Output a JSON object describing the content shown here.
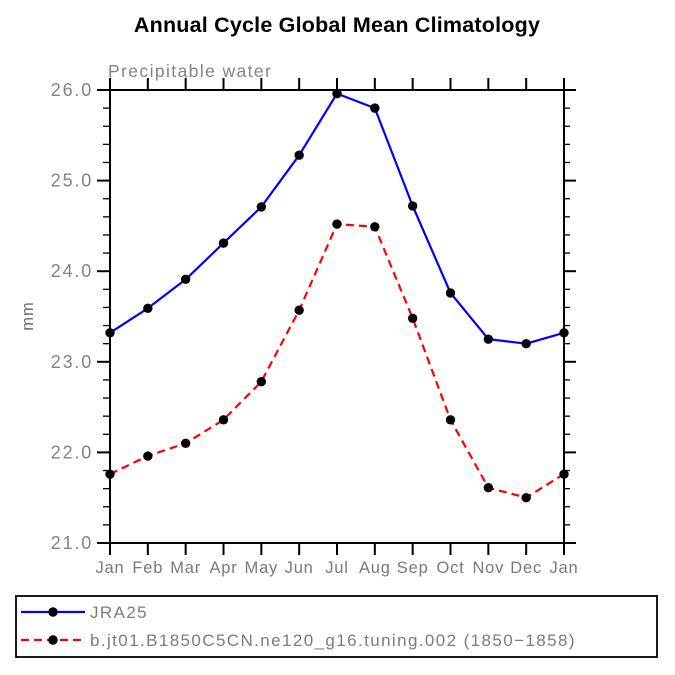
{
  "page": {
    "background": "#ffffff"
  },
  "colors": {
    "axis": "#000000",
    "title_text": "#000000",
    "label_text": "#848484",
    "marker": "#000000",
    "series_blue": "#0000ff",
    "series_red": "#ff0000"
  },
  "chart_data": {
    "type": "line",
    "title": "Annual Cycle Global Mean Climatology",
    "subtitle": "Precipitable water",
    "xlabel": "",
    "ylabel": "mm",
    "categories": [
      "Jan",
      "Feb",
      "Mar",
      "Apr",
      "May",
      "Jun",
      "Jul",
      "Aug",
      "Sep",
      "Oct",
      "Nov",
      "Dec",
      "Jan"
    ],
    "ylim": [
      21.0,
      26.0
    ],
    "ytick_values": [
      21.0,
      22.0,
      23.0,
      24.0,
      25.0,
      26.0
    ],
    "ytick_labels": [
      "21.0",
      "22.0",
      "23.0",
      "24.0",
      "25.0",
      "26.0"
    ],
    "y_minor_tick_step": 0.2,
    "grid": false,
    "legend_position": "bottom-left-box",
    "series": [
      {
        "name": "JRA25",
        "color": "#0000ff",
        "line_style": "solid",
        "marker": "filled-circle",
        "marker_color": "#000000",
        "values": [
          23.32,
          23.59,
          23.91,
          24.31,
          24.71,
          25.28,
          25.96,
          25.8,
          24.72,
          23.76,
          23.25,
          23.2,
          23.32
        ]
      },
      {
        "name": "b.jt01.B1850C5CN.ne120_g16.tuning.002 (1850−1858)",
        "color": "#ff0000",
        "line_style": "dashed",
        "marker": "filled-circle",
        "marker_color": "#000000",
        "values": [
          21.76,
          21.96,
          22.1,
          22.36,
          22.78,
          23.57,
          24.52,
          24.49,
          23.48,
          22.36,
          21.61,
          21.5,
          21.76
        ]
      }
    ]
  }
}
